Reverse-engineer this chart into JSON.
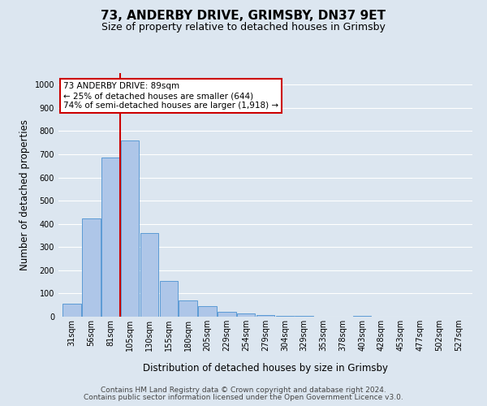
{
  "title": "73, ANDERBY DRIVE, GRIMSBY, DN37 9ET",
  "subtitle": "Size of property relative to detached houses in Grimsby",
  "xlabel": "Distribution of detached houses by size in Grimsby",
  "ylabel": "Number of detached properties",
  "categories": [
    "31sqm",
    "56sqm",
    "81sqm",
    "105sqm",
    "130sqm",
    "155sqm",
    "180sqm",
    "205sqm",
    "229sqm",
    "254sqm",
    "279sqm",
    "304sqm",
    "329sqm",
    "353sqm",
    "378sqm",
    "403sqm",
    "428sqm",
    "453sqm",
    "477sqm",
    "502sqm",
    "527sqm"
  ],
  "values": [
    55,
    425,
    685,
    760,
    360,
    155,
    70,
    45,
    20,
    15,
    7,
    3,
    2,
    1,
    0,
    3,
    0,
    0,
    0,
    0,
    0
  ],
  "bar_color": "#aec6e8",
  "bar_edge_color": "#5b9bd5",
  "property_line_x": 2.5,
  "property_sqm": 89,
  "annotation_text": "73 ANDERBY DRIVE: 89sqm\n← 25% of detached houses are smaller (644)\n74% of semi-detached houses are larger (1,918) →",
  "annotation_box_color": "#ffffff",
  "annotation_box_edge_color": "#cc0000",
  "line_color": "#cc0000",
  "background_color": "#dce6f0",
  "plot_bg_color": "#dce6f0",
  "grid_color": "#ffffff",
  "ylim": [
    0,
    1050
  ],
  "yticks": [
    0,
    100,
    200,
    300,
    400,
    500,
    600,
    700,
    800,
    900,
    1000
  ],
  "footer_line1": "Contains HM Land Registry data © Crown copyright and database right 2024.",
  "footer_line2": "Contains public sector information licensed under the Open Government Licence v3.0.",
  "title_fontsize": 11,
  "subtitle_fontsize": 9,
  "xlabel_fontsize": 8.5,
  "ylabel_fontsize": 8.5,
  "tick_fontsize": 7,
  "footer_fontsize": 6.5,
  "ann_fontsize": 7.5
}
